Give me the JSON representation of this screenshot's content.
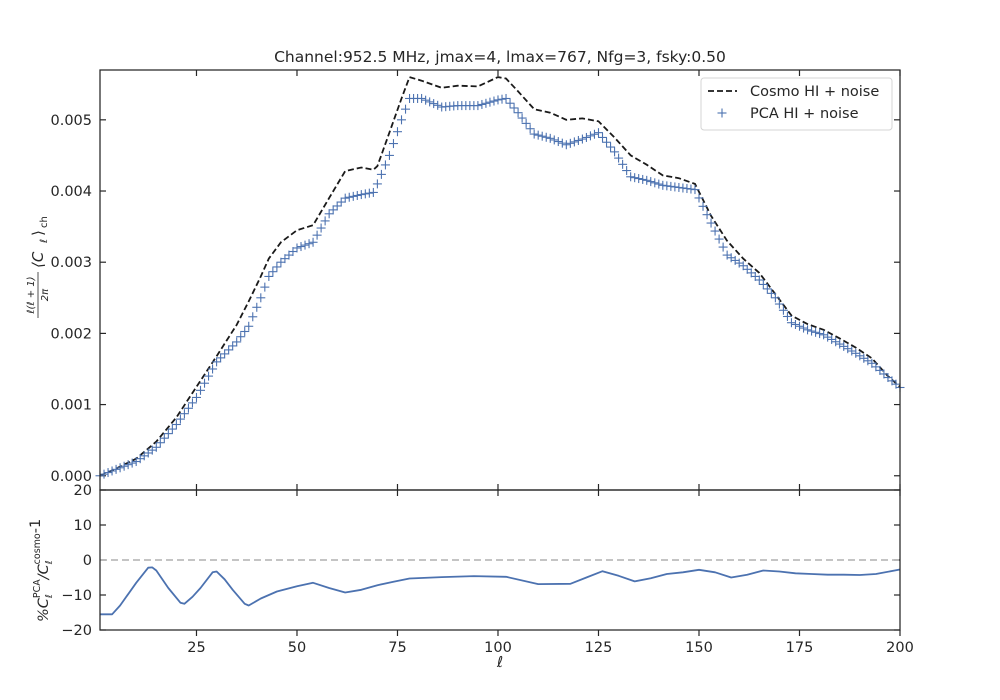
{
  "chart_data": [
    {
      "type": "line",
      "title": "Channel:952.5 MHz, jmax=4, lmax=767, Nfg=3, fsky:0.50",
      "ylabel_parts": [
        "ℓ(ℓ + 1)",
        "2π",
        "⟨C",
        "ℓ",
        "⟩",
        "ch"
      ],
      "xlim": [
        1,
        200
      ],
      "ylim": [
        -0.0002,
        0.0057
      ],
      "yticks": [
        "0.000",
        "0.001",
        "0.002",
        "0.003",
        "0.004",
        "0.005"
      ],
      "ytick_values": [
        0.0,
        0.001,
        0.002,
        0.003,
        0.004,
        0.005
      ],
      "legend": {
        "position": "top-right",
        "entries": [
          "Cosmo HI + noise",
          "PCA HI + noise"
        ]
      },
      "series": [
        {
          "name": "Cosmo HI + noise",
          "style": "dashed-line",
          "color": "#1a1a1a",
          "x": [
            1,
            5,
            10,
            15,
            20,
            25,
            30,
            35,
            38,
            41,
            43,
            46,
            50,
            54,
            58,
            62,
            66,
            69,
            70,
            73,
            76,
            78,
            81,
            86,
            90,
            95,
            100,
            102,
            105,
            109,
            113,
            117,
            121,
            125,
            129,
            133,
            137,
            141,
            145,
            149,
            153,
            157,
            161,
            165,
            169,
            173,
            177,
            181,
            185,
            189,
            193,
            197,
            200
          ],
          "y": [
            0.0,
            0.0001,
            0.00024,
            0.00048,
            0.00082,
            0.00125,
            0.00168,
            0.00212,
            0.00245,
            0.0028,
            0.00305,
            0.00328,
            0.00345,
            0.00352,
            0.0039,
            0.00428,
            0.00433,
            0.0043,
            0.00435,
            0.00482,
            0.0053,
            0.0056,
            0.00555,
            0.00545,
            0.00548,
            0.00547,
            0.0056,
            0.00558,
            0.0054,
            0.00515,
            0.0051,
            0.005,
            0.00502,
            0.00498,
            0.00475,
            0.0045,
            0.00437,
            0.00422,
            0.00418,
            0.0041,
            0.00365,
            0.0033,
            0.00305,
            0.00285,
            0.00255,
            0.00225,
            0.00213,
            0.00205,
            0.00193,
            0.0018,
            0.00165,
            0.0014,
            0.00125
          ]
        },
        {
          "name": "PCA HI + noise",
          "style": "plus-markers",
          "color": "#4c72b0",
          "x": [
            1,
            5,
            10,
            15,
            20,
            25,
            30,
            35,
            38,
            41,
            43,
            46,
            50,
            54,
            58,
            62,
            66,
            69,
            70,
            73,
            76,
            78,
            81,
            86,
            90,
            95,
            100,
            102,
            105,
            109,
            113,
            117,
            121,
            125,
            129,
            133,
            137,
            141,
            145,
            149,
            153,
            157,
            161,
            165,
            169,
            173,
            177,
            181,
            185,
            189,
            193,
            197,
            200
          ],
          "y": [
            0.0,
            9e-05,
            0.0002,
            0.0004,
            0.00072,
            0.0011,
            0.0016,
            0.00188,
            0.0021,
            0.0025,
            0.0028,
            0.003,
            0.0032,
            0.00328,
            0.00368,
            0.0039,
            0.00395,
            0.00398,
            0.0041,
            0.0045,
            0.005,
            0.0053,
            0.0053,
            0.00518,
            0.0052,
            0.0052,
            0.00528,
            0.0053,
            0.0051,
            0.0048,
            0.00474,
            0.00465,
            0.00473,
            0.00482,
            0.00455,
            0.0042,
            0.00415,
            0.00408,
            0.00405,
            0.00402,
            0.00355,
            0.0031,
            0.00295,
            0.00275,
            0.0025,
            0.00215,
            0.00205,
            0.00198,
            0.00185,
            0.00172,
            0.00158,
            0.00138,
            0.00124
          ]
        }
      ]
    },
    {
      "type": "line",
      "xlabel": "ℓ",
      "ylabel_parts": [
        "%C",
        "ℓ",
        "PCA",
        "/C",
        "ℓ",
        "cosmo",
        "-1"
      ],
      "xlim": [
        1,
        200
      ],
      "ylim": [
        -20,
        20
      ],
      "xticks": [
        "25",
        "50",
        "75",
        "100",
        "125",
        "150",
        "175",
        "200"
      ],
      "xtick_values": [
        25,
        50,
        75,
        100,
        125,
        150,
        175,
        200
      ],
      "yticks": [
        "−20",
        "−10",
        "0",
        "10",
        "20"
      ],
      "ytick_values": [
        -20,
        -10,
        0,
        10,
        20
      ],
      "reference_line": {
        "y": 0,
        "style": "dashed",
        "color": "#b0b0b0"
      },
      "series": [
        {
          "style": "solid-line",
          "color": "#4c72b0",
          "x": [
            1,
            3,
            4,
            6,
            10,
            13,
            14,
            15,
            18,
            21,
            22,
            24,
            26,
            29,
            30,
            32,
            34,
            37,
            38,
            41,
            45,
            50,
            54,
            58,
            62,
            66,
            70,
            74,
            78,
            86,
            94,
            102,
            110,
            118,
            122,
            126,
            130,
            134,
            138,
            142,
            146,
            150,
            154,
            158,
            162,
            166,
            170,
            174,
            178,
            182,
            186,
            190,
            194,
            200
          ],
          "y": [
            -15.5,
            -15.5,
            -15.5,
            -13,
            -6.5,
            -2.2,
            -2.1,
            -3,
            -8,
            -12.2,
            -12.5,
            -10.5,
            -8,
            -3.5,
            -3.3,
            -5.5,
            -8.5,
            -12.5,
            -13,
            -11,
            -9,
            -7.5,
            -6.5,
            -8,
            -9.3,
            -8.5,
            -7.2,
            -6.2,
            -5.3,
            -4.9,
            -4.6,
            -4.8,
            -6.9,
            -6.8,
            -5,
            -3.2,
            -4.5,
            -6.1,
            -5.2,
            -4,
            -3.5,
            -2.8,
            -3.5,
            -5,
            -4.2,
            -3,
            -3.3,
            -3.8,
            -4,
            -4.2,
            -4.2,
            -4.3,
            -4,
            -2.7
          ]
        }
      ]
    }
  ]
}
